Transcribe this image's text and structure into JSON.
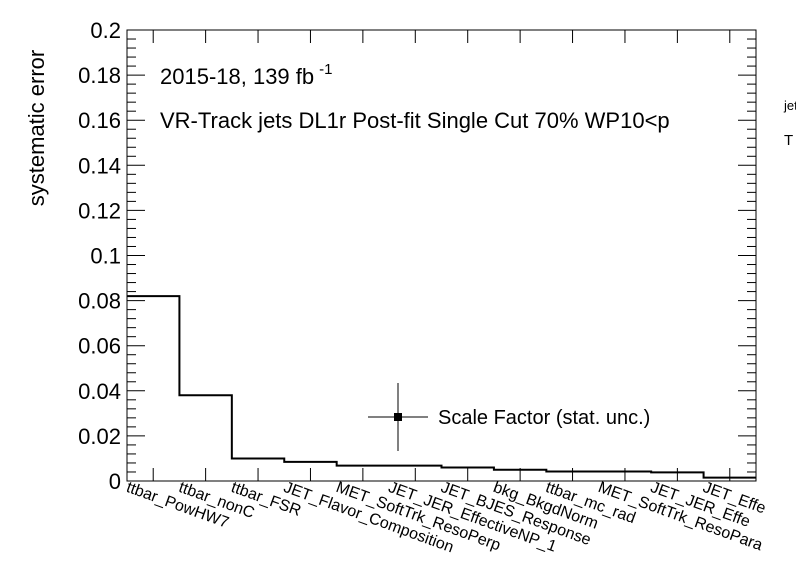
{
  "chart_data": {
    "type": "bar",
    "style": "step-histogram",
    "ylabel": "systematic error",
    "ylim": [
      0,
      0.2
    ],
    "yticks": [
      "0",
      "0.02",
      "0.04",
      "0.06",
      "0.08",
      "0.1",
      "0.12",
      "0.14",
      "0.16",
      "0.18",
      "0.2"
    ],
    "categories": [
      "ttbar_PowHW7",
      "ttbar_nonC",
      "ttbar_FSR",
      "JET_Flavor_Composition",
      "MET_SoftTrk_ResoPerp",
      "JET_JER_EffectiveNP_1",
      "JET_BJES_Response",
      "bkg_BkgdNorm",
      "ttbar_mc_rad",
      "MET_SoftTrk_ResoPara",
      "JET_JER_Effe",
      "JET_Effe"
    ],
    "values": [
      0.082,
      0.038,
      0.01,
      0.0085,
      0.0068,
      0.0068,
      0.006,
      0.005,
      0.0042,
      0.0042,
      0.0038,
      0.0015
    ],
    "annotations": {
      "lumi_prefix": "2015-18, 139 fb",
      "lumi_exp": "-1",
      "selection": "VR-Track jets DL1r Post-fit Single Cut 70% WP10<p",
      "clipped_superscript": "jet",
      "clipped_subscript": "T"
    },
    "legend": {
      "entries": [
        "Scale Factor (stat. unc.)"
      ],
      "placement": "bottom-right",
      "marker": "point-with-error-bars"
    },
    "grid": false
  }
}
